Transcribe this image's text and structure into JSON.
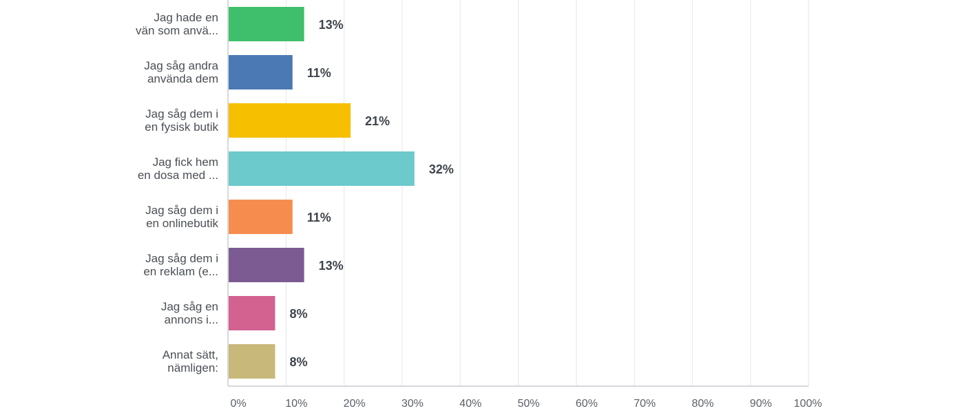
{
  "chart_data": {
    "type": "bar",
    "orientation": "horizontal",
    "categories": [
      [
        "Jag hade en",
        "vän som anvä..."
      ],
      [
        "Jag såg andra",
        "använda dem"
      ],
      [
        "Jag såg dem i",
        "en fysisk butik"
      ],
      [
        "Jag fick hem",
        "en dosa med ..."
      ],
      [
        "Jag såg dem i",
        "en onlinebutik"
      ],
      [
        "Jag såg dem i",
        "en reklam (e..."
      ],
      [
        "Jag såg en",
        "annons i..."
      ],
      [
        "Annat sätt,",
        "nämligen:"
      ]
    ],
    "values": [
      13,
      11,
      21,
      32,
      11,
      13,
      8,
      8
    ],
    "value_labels": [
      "13%",
      "11%",
      "21%",
      "32%",
      "11%",
      "13%",
      "8%",
      "8%"
    ],
    "colors": [
      "#3fbf6b",
      "#4a79b3",
      "#f6bf00",
      "#6cc9cc",
      "#f68d4e",
      "#7b5b91",
      "#d36291",
      "#c8b87a"
    ],
    "xlim": [
      0,
      100
    ],
    "x_ticks": [
      "0%",
      "10%",
      "20%",
      "30%",
      "40%",
      "50%",
      "60%",
      "70%",
      "80%",
      "90%",
      "100%"
    ],
    "grid": true
  }
}
